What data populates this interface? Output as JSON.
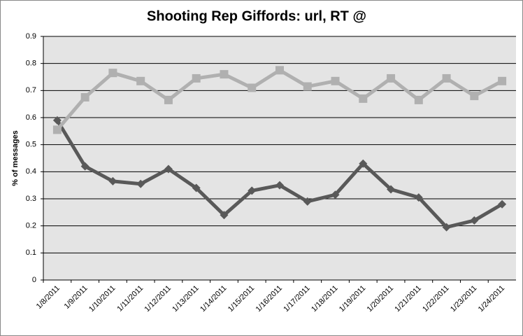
{
  "chart_data": {
    "type": "line",
    "title": "Shooting Rep Giffords: url, RT @",
    "y_label": "% of messages",
    "categories": [
      "1/8/2011",
      "1/9/2011",
      "1/10/2011",
      "1/11/2011",
      "1/12/2011",
      "1/13/2011",
      "1/14/2011",
      "1/15/2011",
      "1/16/2011",
      "1/17/2011",
      "1/18/2011",
      "1/19/2011",
      "1/20/2011",
      "1/21/2011",
      "1/22/2011",
      "1/23/2011",
      "1/24/2011"
    ],
    "series": [
      {
        "color": "#595959",
        "marker": "diamond",
        "values": [
          0.59,
          0.42,
          0.365,
          0.355,
          0.41,
          0.34,
          0.24,
          0.33,
          0.35,
          0.29,
          0.315,
          0.43,
          0.335,
          0.305,
          0.195,
          0.22,
          0.28
        ]
      },
      {
        "color": "#b0b0b0",
        "marker": "square",
        "values": [
          0.555,
          0.675,
          0.765,
          0.735,
          0.665,
          0.745,
          0.76,
          0.71,
          0.775,
          0.715,
          0.735,
          0.67,
          0.745,
          0.665,
          0.745,
          0.68,
          0.735
        ]
      }
    ],
    "ylim": [
      0,
      0.9
    ],
    "yticks": [
      0,
      0.1,
      0.2,
      0.3,
      0.4,
      0.5,
      0.6,
      0.7,
      0.8,
      0.9
    ],
    "grid": true
  }
}
